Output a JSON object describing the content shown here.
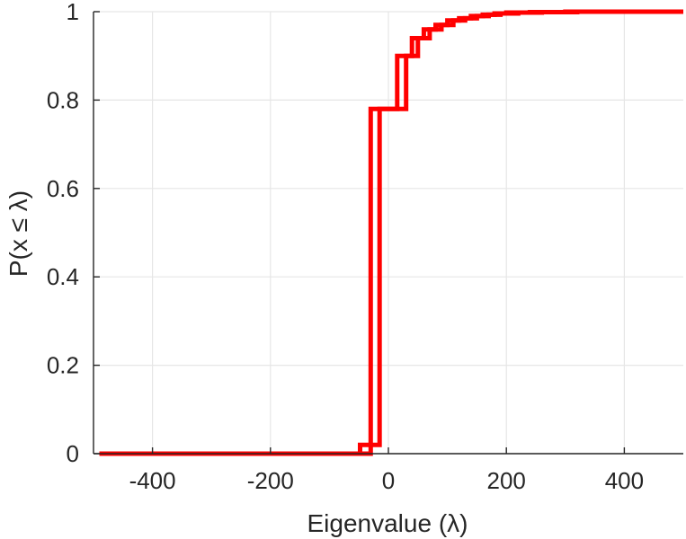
{
  "chart_data": {
    "type": "line",
    "subtype": "stairs",
    "title": "",
    "xlabel": "Eigenvalue (λ)",
    "ylabel": "P(x ≤ λ)",
    "xlim": [
      -500,
      500
    ],
    "ylim": [
      0,
      1
    ],
    "xticks": [
      -400,
      -200,
      0,
      200,
      400
    ],
    "yticks": [
      0,
      0.2,
      0.4,
      0.6,
      0.8,
      1
    ],
    "xtick_labels": [
      "-400",
      "-200",
      "0",
      "200",
      "400"
    ],
    "ytick_labels": [
      "0",
      "0.2",
      "0.4",
      "0.6",
      "0.8",
      "1"
    ],
    "grid": true,
    "legend": "none",
    "series_color": "#ff0000",
    "series": [
      {
        "x": [
          -490,
          -48,
          -48,
          -30,
          -30,
          15,
          15,
          40,
          40,
          60,
          60,
          80,
          80,
          100,
          100,
          120,
          120,
          140,
          140,
          160,
          160,
          180,
          180,
          200,
          200,
          240,
          240,
          300,
          300,
          500
        ],
        "y": [
          0,
          0,
          0.02,
          0.02,
          0.78,
          0.78,
          0.9,
          0.9,
          0.94,
          0.94,
          0.96,
          0.96,
          0.97,
          0.97,
          0.98,
          0.98,
          0.985,
          0.985,
          0.99,
          0.99,
          0.993,
          0.993,
          0.996,
          0.996,
          0.998,
          0.998,
          0.999,
          0.999,
          1.0,
          1.0
        ]
      },
      {
        "x": [
          -490,
          -30,
          -30,
          -15,
          -15,
          30,
          30,
          50,
          50,
          70,
          70,
          90,
          90,
          110,
          110,
          130,
          130,
          150,
          150,
          170,
          170,
          190,
          190,
          220,
          220,
          260,
          260,
          320,
          320,
          500
        ],
        "y": [
          0,
          0,
          0.02,
          0.02,
          0.78,
          0.78,
          0.9,
          0.9,
          0.94,
          0.94,
          0.96,
          0.96,
          0.97,
          0.97,
          0.98,
          0.98,
          0.985,
          0.985,
          0.99,
          0.99,
          0.993,
          0.993,
          0.996,
          0.996,
          0.998,
          0.998,
          0.999,
          0.999,
          1.0,
          1.0
        ]
      }
    ]
  }
}
